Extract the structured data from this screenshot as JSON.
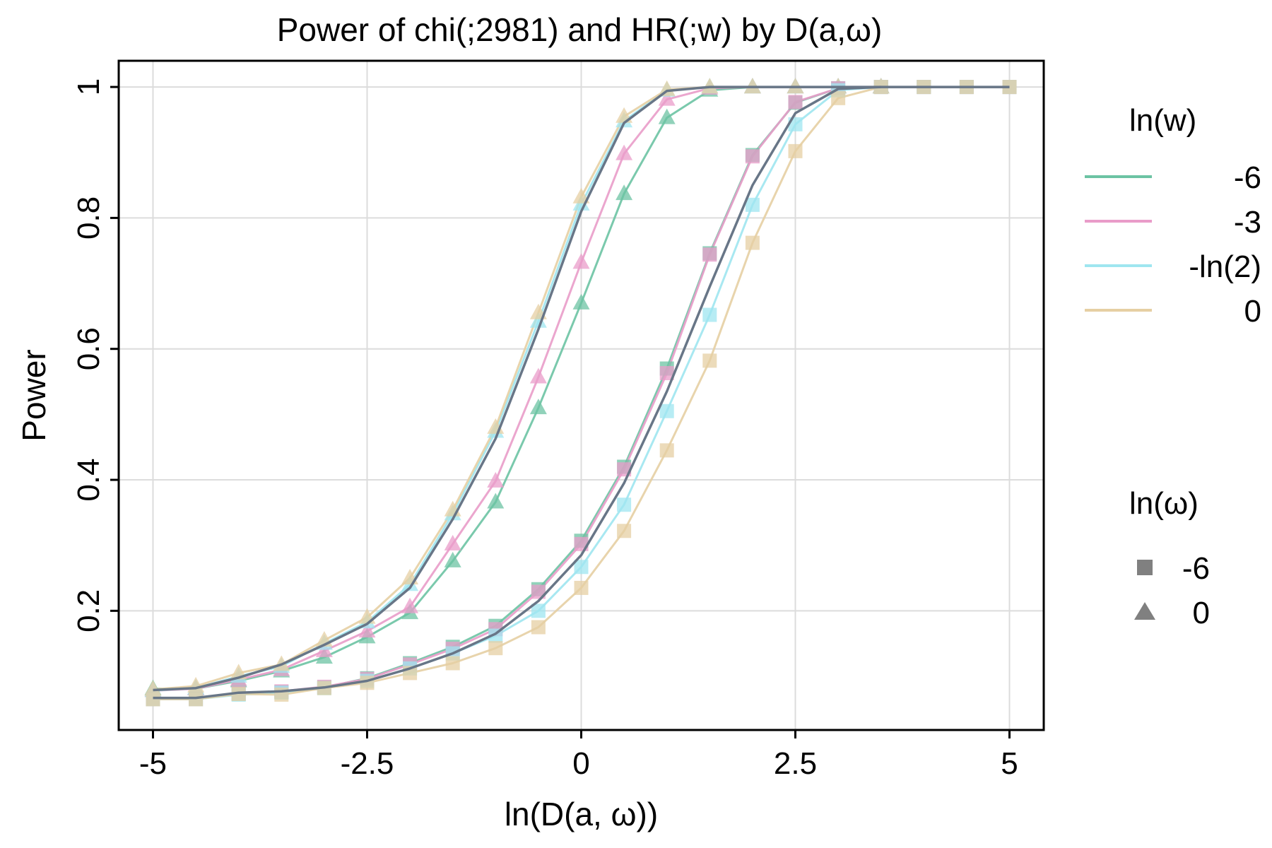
{
  "chart_data": {
    "type": "line",
    "title": "Power of chi(;2981) and HR(;w) by D(a,ω)",
    "xlabel": "ln(D(a, ω))",
    "ylabel": "Power",
    "xlim": [
      -5.4,
      5.4
    ],
    "ylim": [
      0.018,
      1.04
    ],
    "x_ticks": [
      -5,
      -2.5,
      0,
      2.5,
      5
    ],
    "x_tick_labels": [
      "-5",
      "-2.5",
      "0",
      "2.5",
      "5"
    ],
    "y_ticks": [
      0.2,
      0.4,
      0.6,
      0.8,
      1.0
    ],
    "y_tick_labels": [
      "0.2",
      "0.4",
      "0.6",
      "0.8",
      "1"
    ],
    "grid": true,
    "legend_w": {
      "title": "ln(w)",
      "placement": "right-top",
      "entries": [
        {
          "label": "-6",
          "color": "#6cc3a3"
        },
        {
          "label": "-3",
          "color": "#e99cc9"
        },
        {
          "label": "-ln(2)",
          "color": "#9fe6f0"
        },
        {
          "label": "0",
          "color": "#e6cfa3"
        }
      ]
    },
    "legend_omega": {
      "title": "ln(ω)",
      "placement": "right-bottom",
      "entries": [
        {
          "label": "-6",
          "shape": "square"
        },
        {
          "label": "0",
          "shape": "triangle"
        }
      ]
    },
    "chi_color": "#687687",
    "series": [
      {
        "w": "-6",
        "omega": "0",
        "marker": "triangle",
        "color": "#6cc3a3",
        "x": [
          -5,
          -4.5,
          -4,
          -3.5,
          -3,
          -2.5,
          -2,
          -1.5,
          -1,
          -0.5,
          0,
          0.5,
          1,
          1.5,
          2,
          2.5,
          3,
          3.5
        ],
        "y": [
          0.081,
          0.081,
          0.093,
          0.108,
          0.129,
          0.16,
          0.197,
          0.276,
          0.366,
          0.51,
          0.67,
          0.837,
          0.953,
          0.995,
          1.0,
          1.0,
          1.0,
          1.0
        ]
      },
      {
        "w": "-3",
        "omega": "0",
        "marker": "triangle",
        "color": "#e99cc9",
        "x": [
          -5,
          -4.5,
          -4,
          -3.5,
          -3,
          -2.5,
          -2,
          -1.5,
          -1,
          -0.5,
          0,
          0.5,
          1,
          1.5,
          2,
          2.5,
          3,
          3.5
        ],
        "y": [
          0.078,
          0.081,
          0.095,
          0.11,
          0.139,
          0.169,
          0.206,
          0.302,
          0.398,
          0.557,
          0.732,
          0.898,
          0.981,
          0.998,
          1.0,
          1.0,
          1.0,
          1.0
        ]
      },
      {
        "w": "-ln(2)",
        "omega": "0",
        "marker": "triangle",
        "color": "#9fe6f0",
        "x": [
          -5,
          -4.5,
          -4,
          -3.5,
          -3,
          -2.5,
          -2,
          -1.5,
          -1,
          -0.5,
          0,
          0.5,
          1,
          1.5,
          2,
          2.5,
          3,
          3.5
        ],
        "y": [
          0.078,
          0.082,
          0.1,
          0.115,
          0.15,
          0.183,
          0.24,
          0.348,
          0.474,
          0.642,
          0.821,
          0.948,
          0.995,
          1.0,
          1.0,
          1.0,
          1.0,
          1.0
        ]
      },
      {
        "w": "0",
        "omega": "0",
        "marker": "triangle",
        "color": "#e6cfa3",
        "x": [
          -5,
          -4.5,
          -4,
          -3.5,
          -3,
          -2.5,
          -2,
          -1.5,
          -1,
          -0.5,
          0,
          0.5,
          1,
          1.5,
          2,
          2.5,
          3,
          3.5
        ],
        "y": [
          0.08,
          0.085,
          0.105,
          0.118,
          0.155,
          0.19,
          0.25,
          0.354,
          0.48,
          0.655,
          0.832,
          0.955,
          0.996,
          1.0,
          1.0,
          1.0,
          1.0,
          1.0
        ]
      },
      {
        "w": "-6",
        "omega": "-6",
        "marker": "square",
        "color": "#6cc3a3",
        "x": [
          -5,
          -4.5,
          -4,
          -3.5,
          -3,
          -2.5,
          -2,
          -1.5,
          -1,
          -0.5,
          0,
          0.5,
          1,
          1.5,
          2,
          2.5,
          3,
          3.5,
          4,
          4.5,
          5
        ],
        "y": [
          0.065,
          0.065,
          0.073,
          0.076,
          0.083,
          0.097,
          0.12,
          0.145,
          0.177,
          0.233,
          0.307,
          0.42,
          0.57,
          0.746,
          0.896,
          0.976,
          0.998,
          1.0,
          1.0,
          1.0,
          1.0
        ]
      },
      {
        "w": "-3",
        "omega": "-6",
        "marker": "square",
        "color": "#e99cc9",
        "x": [
          -5,
          -4.5,
          -4,
          -3.5,
          -3,
          -2.5,
          -2,
          -1.5,
          -1,
          -0.5,
          0,
          0.5,
          1,
          1.5,
          2,
          2.5,
          3,
          3.5,
          4,
          4.5,
          5
        ],
        "y": [
          0.065,
          0.065,
          0.074,
          0.077,
          0.084,
          0.096,
          0.118,
          0.142,
          0.172,
          0.229,
          0.302,
          0.416,
          0.563,
          0.744,
          0.894,
          0.977,
          0.998,
          1.0,
          1.0,
          1.0,
          1.0
        ]
      },
      {
        "w": "-ln(2)",
        "omega": "-6",
        "marker": "square",
        "color": "#9fe6f0",
        "x": [
          -5,
          -4.5,
          -4,
          -3.5,
          -3,
          -2.5,
          -2,
          -1.5,
          -1,
          -0.5,
          0,
          0.5,
          1,
          1.5,
          2,
          2.5,
          3,
          3.5,
          4,
          4.5,
          5
        ],
        "y": [
          0.065,
          0.065,
          0.072,
          0.075,
          0.082,
          0.093,
          0.112,
          0.135,
          0.162,
          0.2,
          0.267,
          0.362,
          0.505,
          0.652,
          0.82,
          0.943,
          0.995,
          1.0,
          1.0,
          1.0,
          1.0
        ]
      },
      {
        "w": "0",
        "omega": "-6",
        "marker": "square",
        "color": "#e6cfa3",
        "x": [
          -5,
          -4.5,
          -4,
          -3.5,
          -3,
          -2.5,
          -2,
          -1.5,
          -1,
          -0.5,
          0,
          0.5,
          1,
          1.5,
          2,
          2.5,
          3,
          3.5,
          4,
          4.5,
          5
        ],
        "y": [
          0.065,
          0.065,
          0.073,
          0.072,
          0.082,
          0.09,
          0.105,
          0.12,
          0.143,
          0.175,
          0.235,
          0.322,
          0.445,
          0.582,
          0.762,
          0.902,
          0.983,
          1.0,
          1.0,
          1.0,
          1.0
        ]
      },
      {
        "name": "chi",
        "omega": "0",
        "marker": "none",
        "color": "#687687",
        "x": [
          -5,
          -4.5,
          -4,
          -3.5,
          -3,
          -2.5,
          -2,
          -1.5,
          -1,
          -0.5,
          0,
          0.5,
          1,
          1.5,
          2,
          2.5,
          3,
          3.5
        ],
        "y": [
          0.079,
          0.082,
          0.098,
          0.118,
          0.148,
          0.18,
          0.235,
          0.34,
          0.463,
          0.63,
          0.81,
          0.945,
          0.994,
          1.0,
          1.0,
          1.0,
          1.0,
          1.0
        ]
      },
      {
        "name": "chi",
        "omega": "-6",
        "marker": "none",
        "color": "#687687",
        "x": [
          -5,
          -4.5,
          -4,
          -3.5,
          -3,
          -2.5,
          -2,
          -1.5,
          -1,
          -0.5,
          0,
          0.5,
          1,
          1.5,
          2,
          2.5,
          3,
          3.5,
          4,
          4.5,
          5
        ],
        "y": [
          0.067,
          0.067,
          0.075,
          0.077,
          0.083,
          0.093,
          0.112,
          0.135,
          0.165,
          0.215,
          0.285,
          0.395,
          0.535,
          0.695,
          0.85,
          0.96,
          0.997,
          1.0,
          1.0,
          1.0,
          1.0
        ]
      }
    ]
  }
}
